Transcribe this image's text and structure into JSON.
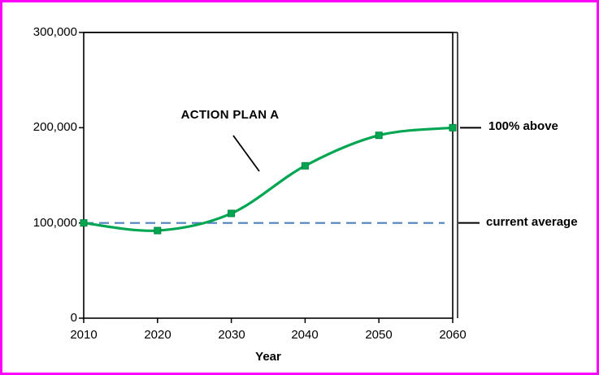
{
  "frame": {
    "border_color": "#FF00FF"
  },
  "chart_data": {
    "type": "line",
    "title": "",
    "xlabel": "Year",
    "ylabel": "",
    "xlim": [
      2010,
      2060
    ],
    "ylim": [
      0,
      300000
    ],
    "grid": false,
    "legend": "none",
    "x": [
      2010,
      2020,
      2030,
      2040,
      2050,
      2060
    ],
    "x_ticks": [
      "2010",
      "2020",
      "2030",
      "2040",
      "2050",
      "2060"
    ],
    "y_ticks": [
      "0",
      "100,000",
      "200,000",
      "300,000"
    ],
    "y_tick_values": [
      0,
      100000,
      200000,
      300000
    ],
    "axis_color": "#000000",
    "series": [
      {
        "name": "ACTION PLAN A",
        "values": [
          100000,
          92000,
          110000,
          160000,
          192000,
          200000
        ],
        "color": "#00A651",
        "marker": "square",
        "marker_edge": "#00853E",
        "line_style": "smooth"
      }
    ],
    "reference_line": {
      "label": "current average",
      "value": 100000,
      "color": "#4F81BD",
      "style": "dashed"
    },
    "annotations": [
      {
        "text": "ACTION PLAN A",
        "target": "series curve near 2032"
      },
      {
        "text": "100% above",
        "value": 200000,
        "side": "right"
      },
      {
        "text": "current average",
        "value": 100000,
        "side": "right"
      }
    ]
  }
}
